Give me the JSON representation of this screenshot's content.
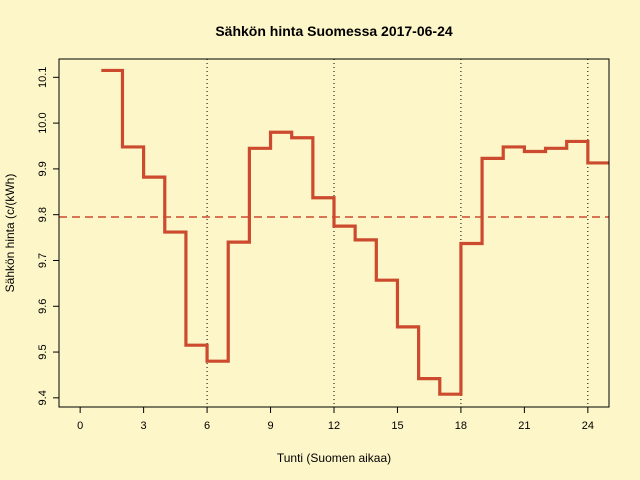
{
  "chart_data": {
    "type": "line",
    "step": true,
    "title": "Sähkön hinta Suomessa 2017-06-24",
    "xlabel": "Tunti (Suomen aikaa)",
    "ylabel": "Sähkön hinta (c/(kWh)",
    "xlim": [
      -1,
      25
    ],
    "ylim": [
      9.38,
      10.14
    ],
    "xticks": [
      0,
      3,
      6,
      9,
      12,
      15,
      18,
      21,
      24
    ],
    "xtick_labels": [
      "0",
      "3",
      "6",
      "9",
      "12",
      "15",
      "18",
      "21",
      "24"
    ],
    "yticks": [
      9.4,
      9.5,
      9.6,
      9.7,
      9.8,
      9.9,
      10.0,
      10.1
    ],
    "ytick_labels": [
      "9.4",
      "9.5",
      "9.6",
      "9.7",
      "9.8",
      "9.9",
      "10.0",
      "10.1"
    ],
    "vlines": [
      6,
      12,
      18,
      24
    ],
    "mean_line": 9.795,
    "series": [
      {
        "color": "#cc4b2e",
        "x": [
          1,
          2,
          3,
          4,
          5,
          6,
          7,
          8,
          9,
          10,
          11,
          12,
          13,
          14,
          15,
          16,
          17,
          18,
          19,
          20,
          21,
          22,
          23,
          24
        ],
        "values": [
          10.115,
          9.948,
          9.882,
          9.762,
          9.515,
          9.48,
          9.74,
          9.945,
          9.98,
          9.968,
          9.837,
          9.775,
          9.745,
          9.657,
          9.555,
          9.442,
          9.408,
          9.737,
          9.923,
          9.948,
          9.938,
          9.945,
          9.96,
          9.913
        ]
      }
    ],
    "mean_color": "#cc4b2e",
    "grid": false
  }
}
